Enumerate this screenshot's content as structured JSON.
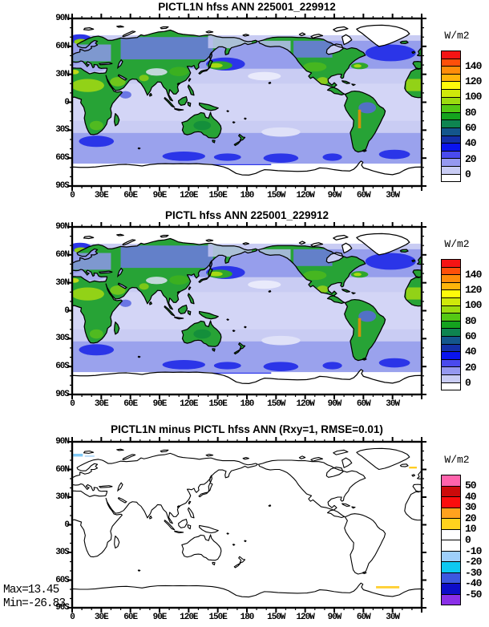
{
  "figure_type": "climate model diagnostic map set",
  "units_label": "W/m2",
  "panels": [
    {
      "id": "pictl1n",
      "title": "PICTL1N hfss ANN 225001_229912"
    },
    {
      "id": "pictl",
      "title": "PICTL hfss ANN 225001_229912"
    },
    {
      "id": "diff",
      "title": "PICTL1N minus PICTL hfss ANN (Rxy=1, RMSE=0.01)",
      "annotation_max": "Max=13.45",
      "annotation_min": "Min=-26.83"
    }
  ],
  "axes": {
    "lon_ticks": [
      "0",
      "30E",
      "60E",
      "90E",
      "120E",
      "150E",
      "180",
      "150W",
      "120W",
      "90W",
      "60W",
      "30W"
    ],
    "lat_ticks": [
      "90N",
      "60N",
      "30N",
      "0",
      "30S",
      "60S",
      "90S"
    ]
  },
  "colorbar_main": {
    "labels": [
      "140",
      "120",
      "100",
      "80",
      "60",
      "40",
      "20",
      "0"
    ],
    "colors": [
      "#F51414",
      "#FF4F0A",
      "#FF8C0A",
      "#FFB40A",
      "#FFFA0A",
      "#CFE80A",
      "#9CDB0F",
      "#54C814",
      "#14A31E",
      "#0E8450",
      "#14568C",
      "#1430A8",
      "#0A14EE",
      "#4A4AEE",
      "#9598F0",
      "#C9CCF4",
      "#FFFFFF"
    ]
  },
  "colorbar_diff": {
    "labels": [
      "50",
      "40",
      "30",
      "20",
      "10",
      "0",
      "-10",
      "-20",
      "-30",
      "-40",
      "-50"
    ],
    "colors": [
      "#FF63AC",
      "#CC0A0A",
      "#FB0D0D",
      "#FFA21E",
      "#FFD21E",
      "#FFFFFF",
      "#FFFFFF",
      "#9ECFFA",
      "#0DC8F0",
      "#3C58E0",
      "#0D0DC8",
      "#8A30E8"
    ]
  },
  "chart_data": [
    {
      "type": "heatmap",
      "title": "PICTL1N hfss ANN 225001_229912",
      "variable": "hfss (surface sensible heat flux)",
      "statistic": "ANN (annual mean)",
      "period": "225001_229912",
      "units": "W/m2",
      "projection": "equirectangular world map, longitude 0-360E (0 at left edge), latitude 90N-90S",
      "x_ticks": [
        "0",
        "30E",
        "60E",
        "90E",
        "120E",
        "150E",
        "180",
        "150W",
        "120W",
        "90W",
        "60W",
        "30W"
      ],
      "y_ticks": [
        "90N",
        "60N",
        "30N",
        "0",
        "30S",
        "60S",
        "90S"
      ],
      "colorbar": {
        "labeled_levels": [
          140,
          120,
          100,
          80,
          60,
          40,
          20,
          0
        ],
        "level_step": 10,
        "colors_top_to_bottom": [
          "#F51414",
          "#FF4F0A",
          "#FF8C0A",
          "#FFB40A",
          "#FFFA0A",
          "#CFE80A",
          "#9CDB0F",
          "#54C814",
          "#14A31E",
          "#0E8450",
          "#14568C",
          "#1430A8",
          "#0A14EE",
          "#4A4AEE",
          "#9598F0",
          "#C9CCF4",
          "#FFFFFF"
        ]
      },
      "pattern_notes": "60-120 W/m2 (greens/yellows) over deserts, mountains and continents; 10-30 W/m2 (periwinkle blues) over mid-latitude oceans; ~0 (pale lavender/white) over tropical oceans, Arctic, Greenland, Antarctica; bright green-yellow streaks east of Japan, along Norway coast and US east coast"
    },
    {
      "type": "heatmap",
      "title": "PICTL hfss ANN 225001_229912",
      "variable": "hfss (surface sensible heat flux)",
      "statistic": "ANN (annual mean)",
      "period": "225001_229912",
      "units": "W/m2",
      "projection": "equirectangular world map, longitude 0-360E (0 at left edge), latitude 90N-90S",
      "x_ticks": [
        "0",
        "30E",
        "60E",
        "90E",
        "120E",
        "150E",
        "180",
        "150W",
        "120W",
        "90W",
        "60W",
        "30W"
      ],
      "y_ticks": [
        "90N",
        "60N",
        "30N",
        "0",
        "30S",
        "60S",
        "90S"
      ],
      "colorbar": {
        "labeled_levels": [
          140,
          120,
          100,
          80,
          60,
          40,
          20,
          0
        ],
        "level_step": 10,
        "colors_top_to_bottom": [
          "#F51414",
          "#FF4F0A",
          "#FF8C0A",
          "#FFB40A",
          "#FFFA0A",
          "#CFE80A",
          "#9CDB0F",
          "#54C814",
          "#14A31E",
          "#0E8450",
          "#14568C",
          "#1430A8",
          "#0A14EE",
          "#4A4AEE",
          "#9598F0",
          "#C9CCF4",
          "#FFFFFF"
        ]
      },
      "pattern_notes": "visually identical to PICTL1N panel (difference RMSE=0.01)"
    },
    {
      "type": "heatmap",
      "title": "PICTL1N minus PICTL hfss ANN (Rxy=1, RMSE=0.01)",
      "variable": "hfss difference",
      "units": "W/m2",
      "stats": {
        "Rxy": 1,
        "RMSE": 0.01,
        "max": 13.45,
        "min": -26.83
      },
      "x_ticks": [
        "0",
        "30E",
        "60E",
        "90E",
        "120E",
        "150E",
        "180",
        "150W",
        "120W",
        "90W",
        "60W",
        "30W"
      ],
      "y_ticks": [
        "90N",
        "60N",
        "30N",
        "0",
        "30S",
        "60S",
        "90S"
      ],
      "colorbar": {
        "labeled_levels": [
          50,
          40,
          30,
          20,
          10,
          0,
          -10,
          -20,
          -30,
          -40,
          -50
        ],
        "level_step": 10,
        "colors_top_to_bottom": [
          "#FF63AC",
          "#CC0A0A",
          "#FB0D0D",
          "#FFA21E",
          "#FFD21E",
          "#FFFFFF",
          "#FFFFFF",
          "#9ECFFA",
          "#0DC8F0",
          "#3C58E0",
          "#0D0DC8",
          "#8A30E8"
        ]
      },
      "pattern_notes": "difference near zero everywhere (white map, coastlines only); small negative (-10 to -20, light blue) patches near 75N at 0-25E and ~345E; small positive (10-20, gold) dash near 62N at right edge and patch near 68S between 50W and 30W"
    }
  ]
}
